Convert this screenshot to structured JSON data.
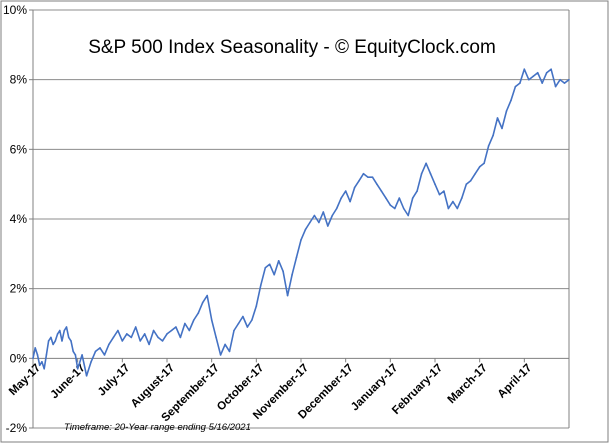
{
  "chart_data": {
    "type": "line",
    "title": "S&P 500 Index Seasonality - © EquityClock.com",
    "footnote": "Timeframe: 20-Year range ending 5/16/2021",
    "xlabel": "",
    "ylabel": "",
    "ylim": [
      -2,
      10
    ],
    "y_ticks": [
      "-2%",
      "0%",
      "2%",
      "4%",
      "6%",
      "8%",
      "10%"
    ],
    "y_tick_values": [
      -2,
      0,
      2,
      4,
      6,
      8,
      10
    ],
    "grid": "horizontal",
    "categories": [
      "May-17",
      "June-17",
      "July-17",
      "August-17",
      "September-17",
      "October-17",
      "November-17",
      "December-17",
      "January-17",
      "February-17",
      "March-17",
      "April-17"
    ],
    "series": [
      {
        "name": "S&P 500 Index Seasonality",
        "color": "#4472c4",
        "x": [
          0,
          0.05,
          0.1,
          0.15,
          0.2,
          0.25,
          0.3,
          0.35,
          0.4,
          0.45,
          0.5,
          0.55,
          0.6,
          0.65,
          0.7,
          0.75,
          0.8,
          0.85,
          0.9,
          0.95,
          1.0,
          1.1,
          1.2,
          1.3,
          1.4,
          1.5,
          1.6,
          1.7,
          1.8,
          1.9,
          2.0,
          2.1,
          2.2,
          2.3,
          2.4,
          2.5,
          2.6,
          2.7,
          2.8,
          2.9,
          3.0,
          3.1,
          3.2,
          3.3,
          3.4,
          3.5,
          3.6,
          3.7,
          3.8,
          3.9,
          4.0,
          4.1,
          4.2,
          4.3,
          4.4,
          4.5,
          4.6,
          4.7,
          4.8,
          4.9,
          5.0,
          5.1,
          5.2,
          5.3,
          5.4,
          5.5,
          5.6,
          5.7,
          5.8,
          5.9,
          6.0,
          6.1,
          6.2,
          6.3,
          6.4,
          6.5,
          6.6,
          6.7,
          6.8,
          6.9,
          7.0,
          7.1,
          7.2,
          7.3,
          7.4,
          7.5,
          7.6,
          7.7,
          7.8,
          7.9,
          8.0,
          8.1,
          8.2,
          8.3,
          8.4,
          8.5,
          8.6,
          8.7,
          8.8,
          8.9,
          9.0,
          9.1,
          9.2,
          9.3,
          9.4,
          9.5,
          9.6,
          9.7,
          9.8,
          9.9,
          10.0,
          10.1,
          10.2,
          10.3,
          10.4,
          10.5,
          10.6,
          10.7,
          10.8,
          10.9,
          11.0,
          11.1,
          11.2,
          11.3,
          11.4,
          11.5,
          11.6,
          11.7,
          11.8,
          11.9,
          12.0
        ],
        "values": [
          0.0,
          0.3,
          0.1,
          -0.2,
          -0.1,
          -0.3,
          0.1,
          0.5,
          0.6,
          0.4,
          0.5,
          0.7,
          0.8,
          0.5,
          0.8,
          0.9,
          0.6,
          0.5,
          0.2,
          0.1,
          -0.3,
          0.1,
          -0.5,
          -0.1,
          0.2,
          0.3,
          0.1,
          0.4,
          0.6,
          0.8,
          0.5,
          0.7,
          0.6,
          0.9,
          0.5,
          0.7,
          0.4,
          0.8,
          0.6,
          0.5,
          0.7,
          0.8,
          0.9,
          0.6,
          1.0,
          0.8,
          1.1,
          1.3,
          1.6,
          1.8,
          1.1,
          0.6,
          0.1,
          0.4,
          0.2,
          0.8,
          1.0,
          1.2,
          0.9,
          1.1,
          1.5,
          2.1,
          2.6,
          2.7,
          2.4,
          2.8,
          2.5,
          1.8,
          2.4,
          2.9,
          3.4,
          3.7,
          3.9,
          4.1,
          3.9,
          4.2,
          3.8,
          4.1,
          4.3,
          4.6,
          4.8,
          4.5,
          4.9,
          5.1,
          5.3,
          5.2,
          5.2,
          5.0,
          4.8,
          4.6,
          4.4,
          4.3,
          4.6,
          4.3,
          4.1,
          4.6,
          4.8,
          5.3,
          5.6,
          5.3,
          5.0,
          4.7,
          4.8,
          4.3,
          4.5,
          4.3,
          4.6,
          5.0,
          5.1,
          5.3,
          5.5,
          5.6,
          6.1,
          6.4,
          6.9,
          6.6,
          7.1,
          7.4,
          7.8,
          7.9,
          8.3,
          8.0,
          8.1,
          8.2,
          7.9,
          8.2,
          8.3,
          7.8,
          8.0,
          7.9,
          8.0
        ]
      }
    ]
  }
}
